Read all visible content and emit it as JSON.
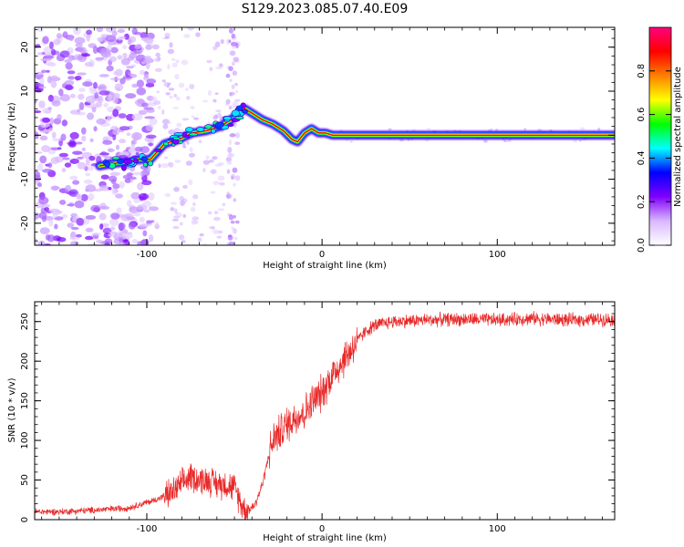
{
  "figure": {
    "title": "S129.2023.085.07.40.E09"
  },
  "chart_data": [
    {
      "type": "heatmap",
      "xlabel": "Height of straight line (km)",
      "ylabel": "Frequency (Hz)",
      "xlim": [
        -164,
        167
      ],
      "ylim": [
        -25,
        24.5
      ],
      "x_ticks": [
        -100,
        0,
        100
      ],
      "x_tick_labels": [
        "-100",
        "0",
        "100"
      ],
      "y_ticks": [
        -20,
        -10,
        0,
        10,
        20
      ],
      "y_tick_labels": [
        "-20",
        "-10",
        "0",
        "10",
        "20"
      ],
      "ridge": {
        "x": [
          -127,
          -120,
          -110,
          -104,
          -98,
          -90,
          -82,
          -74,
          -66,
          -58,
          -52,
          -46,
          -44,
          -40,
          -34,
          -28,
          -22,
          -17,
          -14,
          -10,
          -6,
          -2,
          2,
          6,
          10,
          20,
          60,
          100,
          140,
          167
        ],
        "y": [
          -7,
          -6.5,
          -6,
          -5.5,
          -5.5,
          -2,
          -1,
          0.5,
          1,
          2,
          3.5,
          5.5,
          6,
          5,
          3.5,
          2.5,
          1,
          -1,
          -1.5,
          0.5,
          1.5,
          0.5,
          0.5,
          0,
          0,
          0,
          0,
          0,
          0,
          0
        ]
      },
      "grid": false,
      "colorbar": {
        "label": "Normalized spectral amplitude",
        "range": [
          0,
          1
        ],
        "ticks": [
          0.0,
          0.2,
          0.4,
          0.6,
          0.8
        ],
        "tick_labels": [
          "0.0",
          "0.2",
          "0.4",
          "0.6",
          "0.8"
        ],
        "colors": [
          "#ffffff",
          "#d9b8ff",
          "#8000ff",
          "#0000ff",
          "#00ffff",
          "#00ff00",
          "#ffff00",
          "#ff8000",
          "#ff0000",
          "#ff0080"
        ]
      }
    },
    {
      "type": "line",
      "xlabel": "Height of straight line (km)",
      "ylabel": "SNR (10 * v/v)",
      "xlim": [
        -164,
        167
      ],
      "ylim": [
        0,
        275
      ],
      "x_ticks": [
        -100,
        0,
        100
      ],
      "x_tick_labels": [
        "-100",
        "0",
        "100"
      ],
      "y_ticks": [
        0,
        50,
        100,
        150,
        200,
        250
      ],
      "y_tick_labels": [
        "0",
        "50",
        "100",
        "150",
        "200",
        "250"
      ],
      "grid": false,
      "series": [
        {
          "color": "#e82828",
          "x": [
            -164,
            -150,
            -130,
            -110,
            -95,
            -85,
            -80,
            -75,
            -70,
            -65,
            -60,
            -55,
            -50,
            -45,
            -42,
            -38,
            -34,
            -30,
            -27,
            -24,
            -20,
            -15,
            -10,
            -5,
            0,
            5,
            10,
            15,
            20,
            25,
            30,
            40,
            60,
            80,
            100,
            120,
            140,
            167
          ],
          "y": [
            10,
            10,
            12,
            15,
            25,
            35,
            45,
            55,
            50,
            50,
            45,
            45,
            40,
            15,
            12,
            20,
            45,
            85,
            105,
            110,
            120,
            130,
            135,
            150,
            160,
            180,
            195,
            210,
            225,
            238,
            245,
            250,
            252,
            253,
            252,
            254,
            252,
            253
          ]
        }
      ]
    }
  ]
}
